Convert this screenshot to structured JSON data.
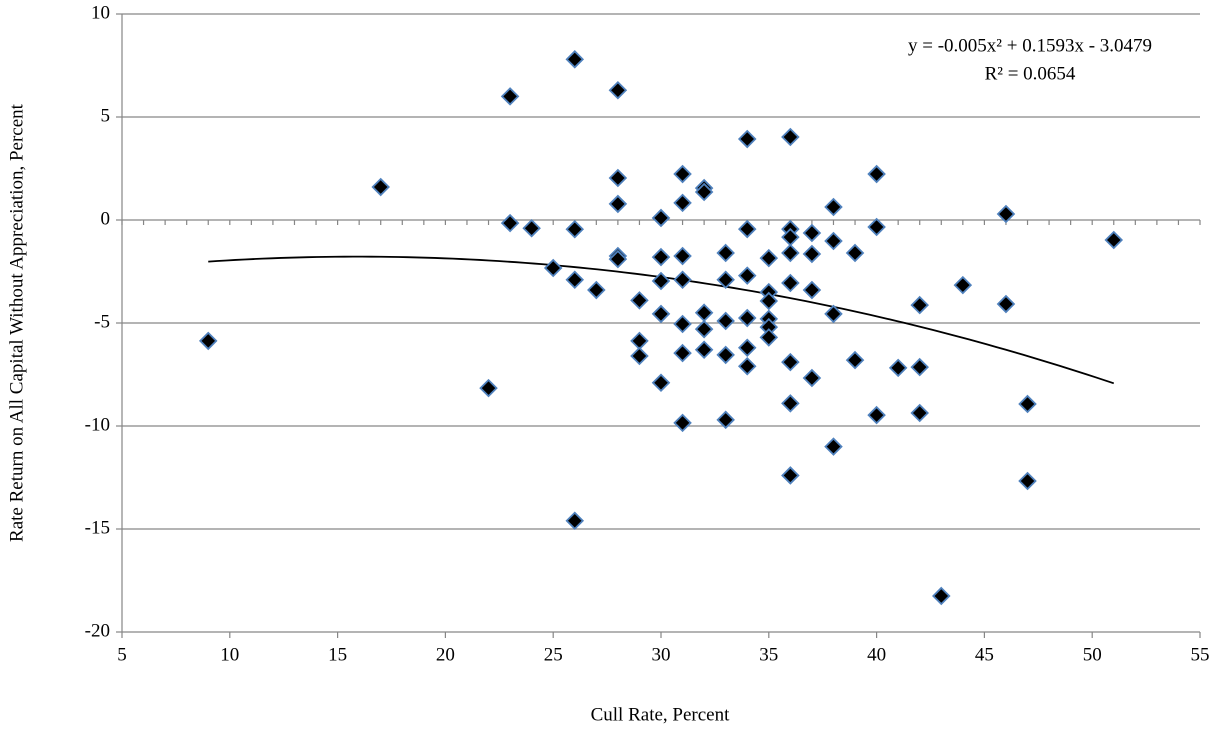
{
  "chart_data": {
    "type": "scatter",
    "xlabel": "Cull Rate, Percent",
    "ylabel": "Rate Return on All Capital Without Appreciation, Percent",
    "x": [
      9,
      17,
      22,
      23,
      23,
      24,
      25,
      26,
      26,
      26,
      26,
      27,
      28,
      28,
      28,
      28,
      28,
      29,
      29,
      29,
      30,
      30,
      30,
      30,
      30,
      31,
      31,
      31,
      31,
      31,
      31,
      31,
      32,
      32,
      32,
      32,
      32,
      33,
      33,
      33,
      33,
      33,
      34,
      34,
      34,
      34,
      34,
      34,
      35,
      35,
      35,
      35,
      35,
      35,
      36,
      36,
      36,
      36,
      36,
      36,
      36,
      36,
      37,
      37,
      37,
      37,
      38,
      38,
      38,
      38,
      39,
      39,
      40,
      40,
      40,
      41,
      42,
      42,
      42,
      43,
      44,
      46,
      46,
      47,
      47,
      51
    ],
    "values": [
      -5.87,
      1.6,
      -8.16,
      6.0,
      -0.15,
      -0.4,
      -2.33,
      7.8,
      -0.45,
      -2.9,
      -14.6,
      -3.4,
      6.3,
      2.04,
      0.78,
      -1.75,
      -1.9,
      -3.9,
      -5.87,
      -6.6,
      0.1,
      -1.8,
      -2.96,
      -4.56,
      -7.9,
      2.23,
      0.83,
      -1.75,
      -2.9,
      -5.05,
      -6.46,
      -9.85,
      1.55,
      1.36,
      -4.5,
      -5.3,
      -6.3,
      -1.6,
      -2.9,
      -4.9,
      -6.55,
      -9.7,
      3.93,
      -0.44,
      -2.7,
      -4.76,
      -6.2,
      -7.1,
      -1.85,
      -3.5,
      -3.93,
      -4.8,
      -5.2,
      -5.7,
      4.03,
      -0.44,
      -0.83,
      -1.6,
      -3.06,
      -6.9,
      -8.9,
      -12.4,
      -0.63,
      -1.65,
      -3.4,
      -7.67,
      0.63,
      -1.02,
      -4.56,
      -11.0,
      -1.6,
      -6.8,
      2.23,
      -0.34,
      -9.47,
      -7.18,
      -4.13,
      -7.14,
      -9.37,
      -18.25,
      -3.16,
      0.29,
      -4.08,
      -8.93,
      -12.67,
      -0.97
    ],
    "color": "#000000",
    "edge_color": "#4f81bd",
    "xlim": [
      5,
      55
    ],
    "xticks": [
      5,
      10,
      15,
      20,
      25,
      30,
      35,
      40,
      45,
      50,
      55
    ],
    "ylim": [
      -20,
      10
    ],
    "yticks": [
      -20,
      -15,
      -10,
      -5,
      0,
      5,
      10
    ],
    "grid": true,
    "trendline": {
      "equation": "y = -0.005x² + 0.1593x - 3.0479",
      "r_squared": "R² = 0.0654",
      "coefficients": [
        -0.005,
        0.1593,
        -3.0479
      ],
      "color": "#000000"
    }
  }
}
